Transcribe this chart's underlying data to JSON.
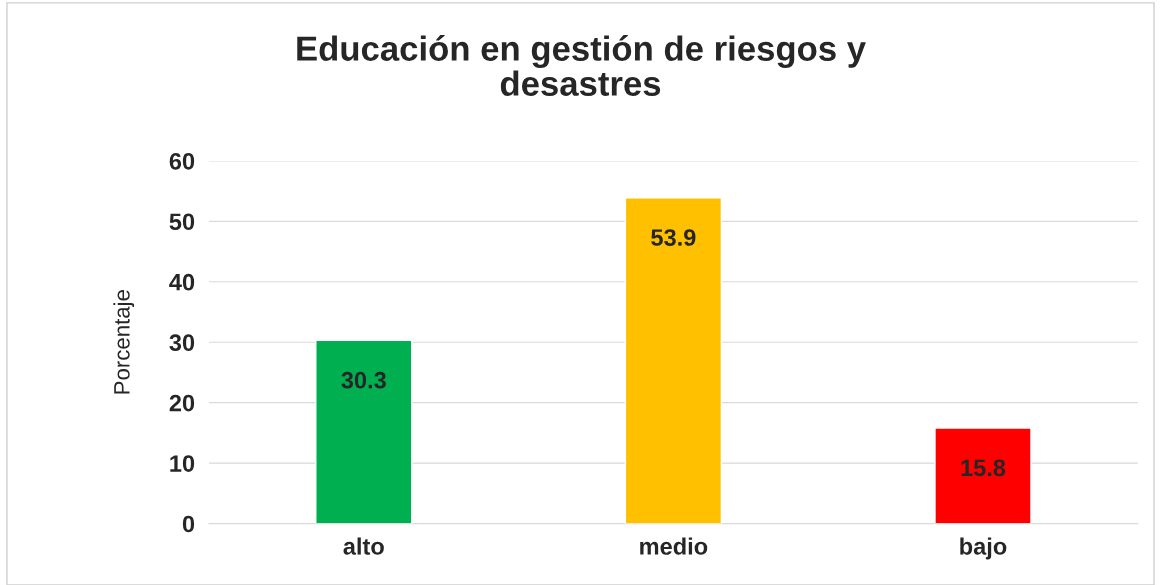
{
  "chart_data": {
    "type": "bar",
    "title": "Educación en gestión de riesgos y\ndesastres",
    "ylabel": "Porcentaje",
    "categories": [
      "alto",
      "medio",
      "bajo"
    ],
    "values": [
      30.3,
      53.9,
      15.8
    ],
    "colors": [
      "#00b050",
      "#ffc000",
      "#ff0000"
    ],
    "ylim": [
      0,
      60
    ],
    "yticks": [
      0,
      10,
      20,
      30,
      40,
      50,
      60
    ],
    "grid": "y",
    "data_labels": true,
    "legend": false
  }
}
